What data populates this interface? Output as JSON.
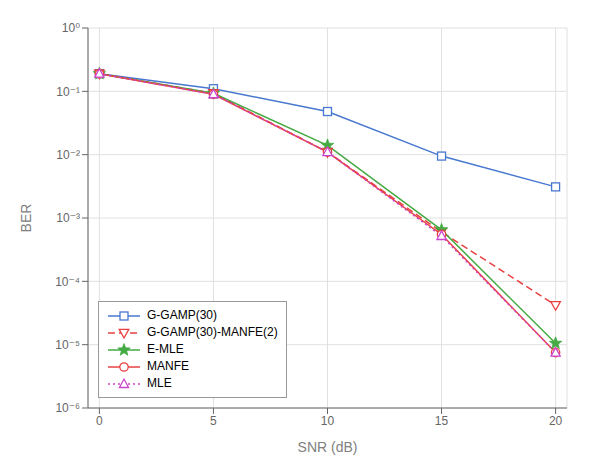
{
  "chart_data": {
    "type": "line",
    "xlabel": "SNR (dB)",
    "ylabel": "BER",
    "x": [
      0,
      5,
      10,
      15,
      20
    ],
    "series": [
      {
        "name": "G-GAMP(30)",
        "color": "#4878CF",
        "marker": "square",
        "line_style": "solid",
        "values": [
          0.19,
          0.11,
          0.048,
          0.0095,
          0.0031
        ]
      },
      {
        "name": "G-GAMP(30)-MANFE(2)",
        "color": "#E84040",
        "marker": "triangle_down",
        "line_style": "dashed",
        "values": [
          0.19,
          0.093,
          0.011,
          0.0006,
          4.2e-05
        ]
      },
      {
        "name": "E-MLE",
        "color": "#44AA44",
        "marker": "star",
        "line_style": "solid",
        "values": [
          0.19,
          0.093,
          0.014,
          0.00065,
          1.05e-05
        ]
      },
      {
        "name": "MANFE",
        "color": "#E84040",
        "marker": "circle",
        "line_style": "solid",
        "values": [
          0.19,
          0.09,
          0.011,
          0.00055,
          7.5e-06
        ]
      },
      {
        "name": "MLE",
        "color": "#CC44CC",
        "marker": "triangle_up",
        "line_style": "dotted",
        "values": [
          0.19,
          0.09,
          0.011,
          0.00052,
          7.5e-06
        ]
      }
    ],
    "xlim": [
      -0.5,
      20.5
    ],
    "xticks": [
      0,
      5,
      10,
      15,
      20
    ],
    "ylim": [
      1e-06,
      1
    ],
    "yticks": [
      {
        "value": 1e-06,
        "label": "10⁻⁶"
      },
      {
        "value": 1e-05,
        "label": "10⁻⁵"
      },
      {
        "value": 0.0001,
        "label": "10⁻⁴"
      },
      {
        "value": 0.001,
        "label": "10⁻³"
      },
      {
        "value": 0.01,
        "label": "10⁻²"
      },
      {
        "value": 0.1,
        "label": "10⁻¹"
      },
      {
        "value": 1,
        "label": "10⁰"
      }
    ],
    "log": "y",
    "grid": true,
    "legend": "lower left"
  }
}
